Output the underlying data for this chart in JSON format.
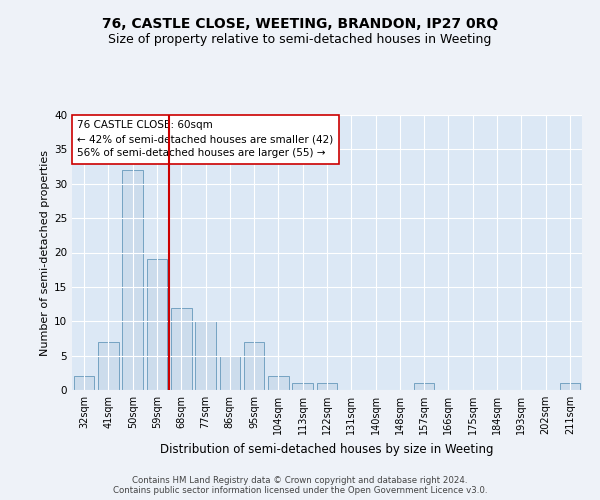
{
  "title": "76, CASTLE CLOSE, WEETING, BRANDON, IP27 0RQ",
  "subtitle": "Size of property relative to semi-detached houses in Weeting",
  "xlabel": "Distribution of semi-detached houses by size in Weeting",
  "ylabel": "Number of semi-detached properties",
  "categories": [
    "32sqm",
    "41sqm",
    "50sqm",
    "59sqm",
    "68sqm",
    "77sqm",
    "86sqm",
    "95sqm",
    "104sqm",
    "113sqm",
    "122sqm",
    "131sqm",
    "140sqm",
    "148sqm",
    "157sqm",
    "166sqm",
    "175sqm",
    "184sqm",
    "193sqm",
    "202sqm",
    "211sqm"
  ],
  "values": [
    2,
    7,
    32,
    19,
    12,
    10,
    5,
    7,
    2,
    1,
    1,
    0,
    0,
    0,
    1,
    0,
    0,
    0,
    0,
    0,
    1
  ],
  "bar_color": "#ccdcec",
  "bar_edge_color": "#6699bb",
  "vline_color": "#cc0000",
  "annotation_text": "76 CASTLE CLOSE: 60sqm\n← 42% of semi-detached houses are smaller (42)\n56% of semi-detached houses are larger (55) →",
  "annotation_box_color": "#ffffff",
  "annotation_box_edge": "#cc0000",
  "ylim": [
    0,
    40
  ],
  "yticks": [
    0,
    5,
    10,
    15,
    20,
    25,
    30,
    35,
    40
  ],
  "title_fontsize": 10,
  "subtitle_fontsize": 9,
  "xlabel_fontsize": 8.5,
  "ylabel_fontsize": 8,
  "footer_text": "Contains HM Land Registry data © Crown copyright and database right 2024.\nContains public sector information licensed under the Open Government Licence v3.0.",
  "background_color": "#eef2f8",
  "plot_bg_color": "#dce8f5",
  "grid_color": "#ffffff"
}
